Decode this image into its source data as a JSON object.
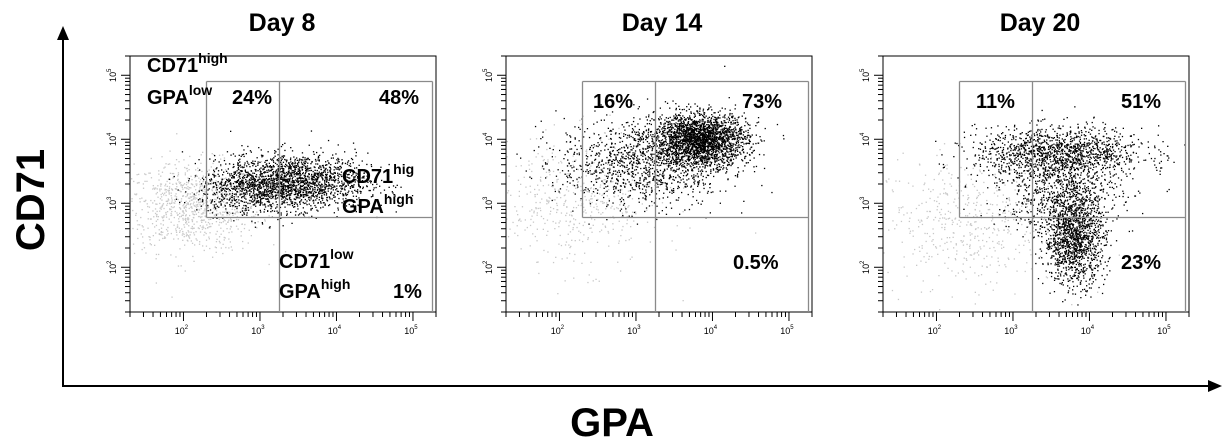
{
  "figure": {
    "x_axis_title": "GPA",
    "y_axis_title": "CD71"
  },
  "chart_data": [
    {
      "type": "scatter",
      "title": "Day 8",
      "xscale": "log",
      "yscale": "log",
      "xlim": [
        20,
        200000
      ],
      "ylim": [
        20,
        200000
      ],
      "x_ticks": [
        "10^2",
        "10^3",
        "10^4",
        "10^5"
      ],
      "y_ticks": [
        "10^2",
        "10^3",
        "10^4",
        "10^5"
      ],
      "gate": {
        "x_low": 200,
        "x_split": 1800,
        "x_high": 180000,
        "y_low": 600,
        "y_high": 80000
      },
      "quadrants": {
        "CD71high_GPAlow": "24%",
        "CD71high_GPAhigh": "48%",
        "CD71low_GPAhigh": "1%"
      },
      "labels": {
        "q1_line1": "CD71",
        "q1_line1_sup": "high",
        "q1_line2": "GPA",
        "q1_line2_sup": "low",
        "q2_line1": "CD71",
        "q2_line1_sup": "hig",
        "q2_line2": "GPA",
        "q2_line2_sup": "high",
        "q3_line1": "CD71",
        "q3_line1_sup": "low",
        "q3_line2": "GPA",
        "q3_line2_sup": "high"
      },
      "populations": [
        {
          "color": "#c8c8c8",
          "n": 900,
          "cx_log": 2.1,
          "cy_log": 2.95,
          "sx": 0.45,
          "sy": 0.35
        },
        {
          "color": "#000000",
          "n": 1500,
          "cx_log": 3.5,
          "cy_log": 3.35,
          "sx": 0.45,
          "sy": 0.22
        },
        {
          "color": "#000000",
          "n": 700,
          "cx_log": 2.9,
          "cy_log": 3.25,
          "sx": 0.35,
          "sy": 0.2
        }
      ]
    },
    {
      "type": "scatter",
      "title": "Day 14",
      "xscale": "log",
      "yscale": "log",
      "xlim": [
        20,
        200000
      ],
      "ylim": [
        20,
        200000
      ],
      "x_ticks": [
        "10^2",
        "10^3",
        "10^4",
        "10^5"
      ],
      "y_ticks": [
        "10^2",
        "10^3",
        "10^4",
        "10^5"
      ],
      "gate": {
        "x_low": 200,
        "x_split": 1800,
        "x_high": 180000,
        "y_low": 600,
        "y_high": 80000
      },
      "quadrants": {
        "CD71high_GPAlow": "16%",
        "CD71high_GPAhigh": "73%",
        "CD71low_GPAhigh": "0.5%"
      },
      "populations": [
        {
          "color": "#c8c8c8",
          "n": 500,
          "cx_log": 2.2,
          "cy_log": 3.0,
          "sx": 0.55,
          "sy": 0.5
        },
        {
          "color": "#000000",
          "n": 2200,
          "cx_log": 3.85,
          "cy_log": 4.0,
          "sx": 0.3,
          "sy": 0.2
        },
        {
          "color": "#000000",
          "n": 1200,
          "cx_log": 3.1,
          "cy_log": 3.65,
          "sx": 0.55,
          "sy": 0.35
        }
      ]
    },
    {
      "type": "scatter",
      "title": "Day 20",
      "xscale": "log",
      "yscale": "log",
      "xlim": [
        20,
        200000
      ],
      "ylim": [
        20,
        200000
      ],
      "x_ticks": [
        "10^2",
        "10^3",
        "10^4",
        "10^5"
      ],
      "y_ticks": [
        "10^2",
        "10^3",
        "10^4",
        "10^5"
      ],
      "gate": {
        "x_low": 200,
        "x_split": 1800,
        "x_high": 180000,
        "y_low": 600,
        "y_high": 80000
      },
      "quadrants": {
        "CD71high_GPAlow": "11%",
        "CD71high_GPAhigh": "51%",
        "CD71low_GPAhigh": "23%"
      },
      "populations": [
        {
          "color": "#c8c8c8",
          "n": 500,
          "cx_log": 2.4,
          "cy_log": 2.7,
          "sx": 0.6,
          "sy": 0.5
        },
        {
          "color": "#000000",
          "n": 1300,
          "cx_log": 3.6,
          "cy_log": 3.8,
          "sx": 0.55,
          "sy": 0.2
        },
        {
          "color": "#000000",
          "n": 1300,
          "cx_log": 3.8,
          "cy_log": 2.45,
          "sx": 0.2,
          "sy": 0.35
        },
        {
          "color": "#000000",
          "n": 700,
          "cx_log": 3.6,
          "cy_log": 3.2,
          "sx": 0.4,
          "sy": 0.3
        }
      ]
    }
  ]
}
